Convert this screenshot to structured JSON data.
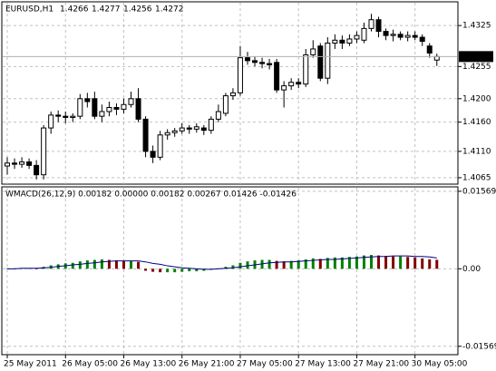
{
  "chart_data": [
    {
      "type": "candlestick",
      "title": "EURUSD,H1",
      "categories": [
        "25 May 2011",
        null,
        null,
        null,
        null,
        null,
        null,
        null,
        "26 May 05:00",
        null,
        null,
        null,
        null,
        null,
        null,
        null,
        "26 May 13:00",
        null,
        null,
        null,
        null,
        null,
        null,
        null,
        "26 May 21:00",
        null,
        null,
        null,
        null,
        null,
        null,
        null,
        "27 May 05:00",
        null,
        null,
        null,
        null,
        null,
        null,
        null,
        "27 May 13:00",
        null,
        null,
        null,
        null,
        null,
        null,
        null,
        "27 May 21:00",
        null,
        null,
        null,
        null,
        null,
        null,
        null,
        "30 May 05:00",
        null,
        null,
        null
      ],
      "open": [
        1.4085,
        1.409,
        1.4088,
        1.4092,
        1.4086,
        1.407,
        1.415,
        1.4172,
        1.417,
        1.4168,
        1.417,
        1.42,
        1.42,
        1.417,
        1.4178,
        1.4185,
        1.4182,
        1.419,
        1.42,
        1.4165,
        1.411,
        1.41,
        1.4138,
        1.4142,
        1.4145,
        1.415,
        1.4148,
        1.415,
        1.4146,
        1.4165,
        1.4175,
        1.4205,
        1.421,
        1.427,
        1.4265,
        1.4262,
        1.426,
        1.4262,
        1.4215,
        1.4222,
        1.4228,
        1.4225,
        1.4275,
        1.429,
        1.4235,
        1.4295,
        1.43,
        1.4295,
        1.4302,
        1.43,
        1.432,
        1.4335,
        1.4315,
        1.4308,
        1.431,
        1.4305,
        1.4308,
        1.4305,
        1.429,
        1.4266
      ],
      "high": [
        1.41,
        1.4098,
        1.41,
        1.4098,
        1.4095,
        1.4155,
        1.4178,
        1.418,
        1.4178,
        1.4175,
        1.4208,
        1.421,
        1.4212,
        1.419,
        1.4195,
        1.4192,
        1.42,
        1.4212,
        1.4218,
        1.417,
        1.412,
        1.4145,
        1.4148,
        1.415,
        1.4158,
        1.4155,
        1.4158,
        1.4155,
        1.417,
        1.419,
        1.421,
        1.4218,
        1.429,
        1.428,
        1.4272,
        1.427,
        1.4268,
        1.4268,
        1.423,
        1.4235,
        1.4235,
        1.4285,
        1.43,
        1.4295,
        1.4305,
        1.431,
        1.4308,
        1.431,
        1.4315,
        1.433,
        1.4345,
        1.434,
        1.432,
        1.4318,
        1.4315,
        1.4315,
        1.4315,
        1.431,
        1.4295,
        1.4277
      ],
      "low": [
        1.407,
        1.408,
        1.4082,
        1.408,
        1.4062,
        1.4062,
        1.414,
        1.416,
        1.4158,
        1.416,
        1.4165,
        1.4185,
        1.4165,
        1.416,
        1.417,
        1.4172,
        1.4175,
        1.4185,
        1.416,
        1.41,
        1.409,
        1.4095,
        1.413,
        1.4135,
        1.414,
        1.414,
        1.4142,
        1.4138,
        1.414,
        1.416,
        1.417,
        1.4198,
        1.4205,
        1.4258,
        1.4255,
        1.4252,
        1.425,
        1.421,
        1.4185,
        1.4215,
        1.4218,
        1.422,
        1.427,
        1.423,
        1.4225,
        1.4285,
        1.4285,
        1.429,
        1.4295,
        1.4295,
        1.4315,
        1.4305,
        1.43,
        1.4298,
        1.43,
        1.4298,
        1.43,
        1.429,
        1.427,
        1.4256
      ],
      "close": [
        1.409,
        1.4088,
        1.4092,
        1.4086,
        1.407,
        1.415,
        1.4172,
        1.417,
        1.4168,
        1.417,
        1.42,
        1.4195,
        1.417,
        1.4178,
        1.4185,
        1.4182,
        1.419,
        1.42,
        1.4165,
        1.411,
        1.41,
        1.4138,
        1.4142,
        1.4145,
        1.415,
        1.4148,
        1.4152,
        1.4146,
        1.4165,
        1.4178,
        1.4205,
        1.421,
        1.427,
        1.4265,
        1.4262,
        1.426,
        1.4258,
        1.4215,
        1.4222,
        1.4228,
        1.4225,
        1.4275,
        1.4285,
        1.4235,
        1.4295,
        1.43,
        1.4295,
        1.4302,
        1.4308,
        1.432,
        1.4335,
        1.4315,
        1.4308,
        1.431,
        1.4305,
        1.4308,
        1.4305,
        1.4298,
        1.4278,
        1.4272
      ],
      "ylim": [
        1.4054,
        1.4364
      ],
      "yticks": [
        1.4325,
        1.4255,
        {
          "value": 1.42,
          "label": "1.4200"
        },
        {
          "value": 1.416,
          "label": "1.4160"
        },
        {
          "value": 1.411,
          "label": "1.4110"
        },
        1.4065
      ],
      "up_color": "#ffffff",
      "down_color": "#000000",
      "grid": true
    },
    {
      "type": "macd",
      "title": "WMACD(26,12,9) 0.00182 0.00000 0.00182 0.00267 0.01426 -0.01426",
      "values": [
        0.0001,
        0.0001,
        0.0001,
        0.0001,
        0,
        0.0004,
        0.0007,
        0.0009,
        0.0011,
        0.0012,
        0.0015,
        0.0017,
        0.0018,
        0.0019,
        0.0018,
        0.0017,
        0.0016,
        0.0016,
        0.0014,
        -0.0004,
        -0.0006,
        -0.0007,
        -0.0007,
        -0.0007,
        -0.0006,
        -0.0005,
        -0.0005,
        -0.0004,
        -0.0002,
        0.0001,
        0.0004,
        0.0007,
        0.0012,
        0.0015,
        0.0017,
        0.0018,
        0.0018,
        0.0016,
        0.0015,
        0.0016,
        0.0017,
        0.0019,
        0.0021,
        0.002,
        0.0022,
        0.0023,
        0.0023,
        0.0024,
        0.0025,
        0.0027,
        0.0028,
        0.0027,
        0.0026,
        0.0025,
        0.0025,
        0.0024,
        0.0023,
        0.0021,
        0.0019,
        0.00182
      ],
      "signal": [
        0,
        0,
        0.0001,
        0.0001,
        0.0001,
        0.0002,
        0.0003,
        0.0005,
        0.0006,
        0.0008,
        0.0009,
        0.0011,
        0.0012,
        0.0014,
        0.0015,
        0.0016,
        0.0016,
        0.0016,
        0.0016,
        0.0014,
        0.0011,
        0.0009,
        0.0006,
        0.0004,
        0.0002,
        0.0001,
        0,
        -0.0001,
        -0.0001,
        0,
        0.0001,
        0.0002,
        0.0004,
        0.0006,
        0.0008,
        0.001,
        0.0012,
        0.0013,
        0.0014,
        0.0014,
        0.0015,
        0.0016,
        0.0017,
        0.0018,
        0.0019,
        0.0019,
        0.002,
        0.0021,
        0.0022,
        0.0023,
        0.0024,
        0.0025,
        0.0025,
        0.0026,
        0.0026,
        0.0026,
        0.0025,
        0.0025,
        0.0024,
        0.0022
      ],
      "ylim": [
        -0.0172,
        0.0164
      ],
      "yticks": [
        0.01569,
        {
          "value": 0,
          "label": "0.00"
        },
        -0.01569
      ],
      "up_color": "#008000",
      "down_color": "#800000",
      "signal_color": "#000080",
      "grid": true
    }
  ]
}
